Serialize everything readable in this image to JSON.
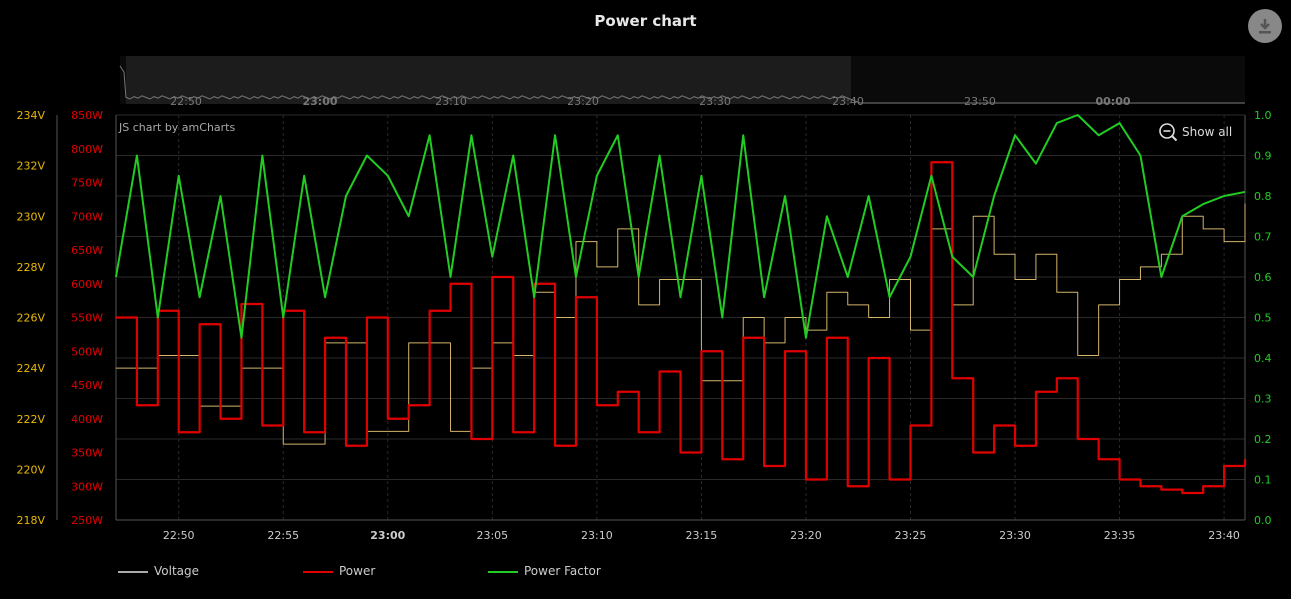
{
  "title": "Power chart",
  "icons": {
    "download": "download-icon",
    "zoom_out": "zoom-out-icon"
  },
  "show_all_label": "Show all",
  "credit": "JS chart by amCharts",
  "colors": {
    "voltage": "#d4b56a",
    "power": "#e00000",
    "power_factor": "#22cc22",
    "voltage_axis": "#e8b800",
    "power_axis": "#e00000",
    "pf_axis": "#22cc22"
  },
  "legend": [
    {
      "name": "Voltage",
      "color": "#aaaaaa"
    },
    {
      "name": "Power",
      "color": "#e00000"
    },
    {
      "name": "Power Factor",
      "color": "#22cc22"
    }
  ],
  "scrollbar_ticks": [
    "22:50",
    "23:00",
    "23:10",
    "23:20",
    "23:30",
    "23:40",
    "23:50",
    "00:00"
  ],
  "chart_data": {
    "type": "line",
    "x_ticks": [
      "22:50",
      "22:55",
      "23:00",
      "23:05",
      "23:10",
      "23:15",
      "23:20",
      "23:25",
      "23:30",
      "23:35",
      "23:40"
    ],
    "x_range": [
      "22:47",
      "23:41"
    ],
    "axes": {
      "voltage": {
        "ticks": [
          "218V",
          "220V",
          "222V",
          "224V",
          "226V",
          "228V",
          "230V",
          "232V",
          "234V"
        ],
        "ylim": [
          218,
          234
        ]
      },
      "power": {
        "ticks": [
          "250W",
          "300W",
          "350W",
          "400W",
          "450W",
          "500W",
          "550W",
          "600W",
          "650W",
          "700W",
          "750W",
          "800W",
          "850W"
        ],
        "ylim": [
          250,
          850
        ]
      },
      "power_factor": {
        "ticks": [
          "0.0",
          "0.1",
          "0.2",
          "0.3",
          "0.4",
          "0.5",
          "0.6",
          "0.7",
          "0.8",
          "0.9",
          "1.0"
        ],
        "ylim": [
          0,
          1
        ]
      }
    },
    "grid": true,
    "legend_position": "bottom-left",
    "series": [
      {
        "name": "Voltage",
        "axis": "voltage",
        "x": [
          0,
          2,
          4,
          6,
          8,
          10,
          12,
          14,
          16,
          17,
          18,
          19,
          20,
          21,
          22,
          23,
          24,
          25,
          26,
          28,
          30,
          31,
          32,
          33,
          34,
          35,
          36,
          37,
          38,
          39,
          40,
          41,
          42,
          43,
          44,
          45,
          46,
          47,
          48,
          49,
          50,
          51,
          52,
          53,
          54
        ],
        "values": [
          224,
          224.5,
          222.5,
          224,
          221,
          225,
          221.5,
          225,
          221.5,
          224,
          225,
          224.5,
          227,
          226,
          229,
          228,
          229.5,
          226.5,
          227.5,
          223.5,
          226,
          225,
          226,
          225.5,
          227,
          226.5,
          226,
          227.5,
          225.5,
          229.5,
          226.5,
          230,
          228.5,
          227.5,
          228.5,
          227,
          224.5,
          226.5,
          227.5,
          228,
          228.5,
          230,
          229.5,
          229,
          230.5
        ]
      },
      {
        "name": "Power",
        "axis": "power",
        "x": [
          0,
          1,
          2,
          3,
          4,
          5,
          6,
          7,
          8,
          9,
          10,
          11,
          12,
          13,
          14,
          15,
          16,
          17,
          18,
          19,
          20,
          21,
          22,
          23,
          24,
          25,
          26,
          27,
          28,
          29,
          30,
          31,
          32,
          33,
          34,
          35,
          36,
          37,
          38,
          39,
          40,
          41,
          42,
          43,
          44,
          45,
          46,
          47,
          48,
          49,
          50,
          51,
          52,
          53,
          54
        ],
        "values": [
          550,
          420,
          560,
          380,
          540,
          400,
          570,
          390,
          560,
          380,
          520,
          360,
          550,
          400,
          420,
          560,
          600,
          370,
          610,
          380,
          600,
          360,
          580,
          420,
          440,
          380,
          470,
          350,
          500,
          340,
          520,
          330,
          500,
          310,
          520,
          300,
          490,
          310,
          390,
          780,
          460,
          350,
          390,
          360,
          440,
          460,
          370,
          340,
          310,
          300,
          295,
          290,
          300,
          330,
          340
        ]
      },
      {
        "name": "Power Factor",
        "axis": "power_factor",
        "x": [
          0,
          1,
          2,
          3,
          4,
          5,
          6,
          7,
          8,
          9,
          10,
          11,
          12,
          13,
          14,
          15,
          16,
          17,
          18,
          19,
          20,
          21,
          22,
          23,
          24,
          25,
          26,
          27,
          28,
          29,
          30,
          31,
          32,
          33,
          34,
          35,
          36,
          37,
          38,
          39,
          40,
          41,
          42,
          43,
          44,
          45,
          46,
          47,
          48,
          49,
          50,
          51,
          52,
          53,
          54
        ],
        "values": [
          0.6,
          0.9,
          0.5,
          0.85,
          0.55,
          0.8,
          0.45,
          0.9,
          0.5,
          0.85,
          0.55,
          0.8,
          0.9,
          0.85,
          0.75,
          0.95,
          0.6,
          0.95,
          0.65,
          0.9,
          0.55,
          0.95,
          0.6,
          0.85,
          0.95,
          0.6,
          0.9,
          0.55,
          0.85,
          0.5,
          0.95,
          0.55,
          0.8,
          0.45,
          0.75,
          0.6,
          0.8,
          0.55,
          0.65,
          0.85,
          0.65,
          0.6,
          0.8,
          0.95,
          0.88,
          0.98,
          1.0,
          0.95,
          0.98,
          0.9,
          0.6,
          0.75,
          0.78,
          0.8,
          0.81
        ]
      }
    ]
  }
}
